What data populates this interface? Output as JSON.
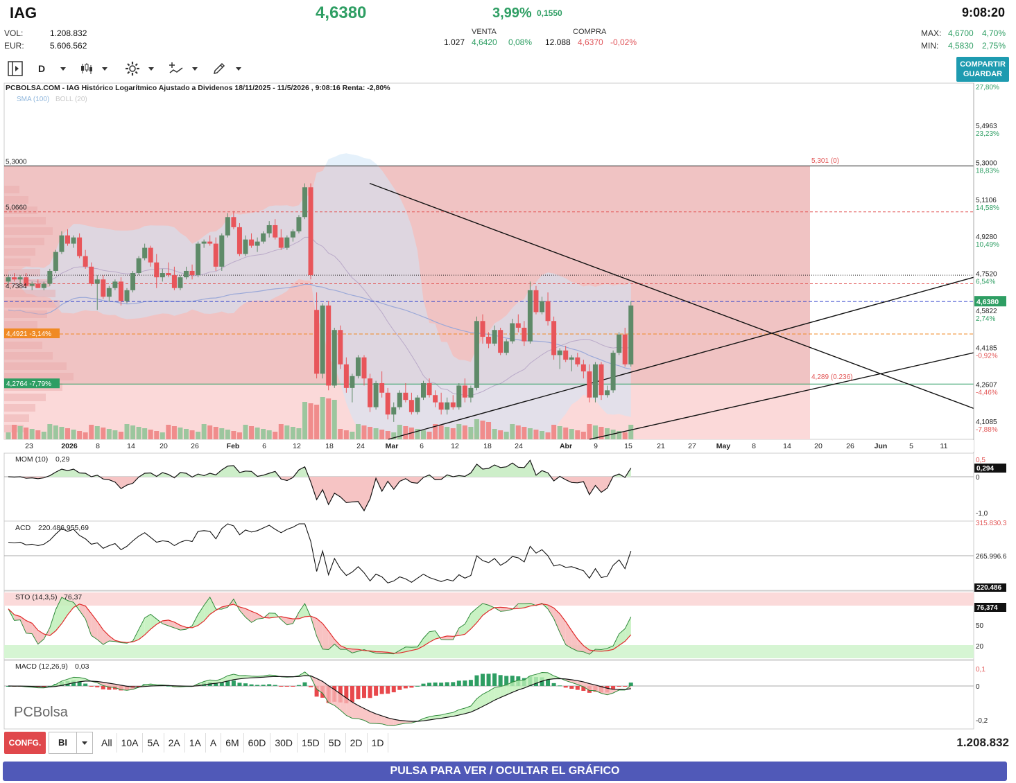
{
  "header": {
    "ticker": "IAG",
    "price": "4,6380",
    "change_pct": "3,99%",
    "change_abs": "0,1550",
    "time": "9:08:20",
    "vol_label": "VOL:",
    "vol_value": "1.208.832",
    "eur_label": "EUR:",
    "eur_value": "5.606.562",
    "venta_label": "VENTA",
    "venta_qty": "1.027",
    "venta_price": "4,6420",
    "venta_pct": "0,08%",
    "compra_label": "COMPRA",
    "compra_qty": "12.088",
    "compra_price": "4,6370",
    "compra_pct": "-0,02%",
    "max_label": "MAX:",
    "max_value": "4,6700",
    "max_pct": "4,70%",
    "min_label": "MIN:",
    "min_value": "4,5830",
    "min_pct": "2,75%"
  },
  "toolbar": {
    "period": "D",
    "share_line1": "COMPARTIR",
    "share_line2": "GUARDAR",
    "icons": [
      "panel-toggle-icon",
      "candlestick-icon",
      "gear-icon",
      "indicator-icon",
      "pencil-icon"
    ]
  },
  "chart_data": {
    "type": "candlestick",
    "title": "PCBOLSA.COM - IAG Histórico Logarítmico Ajustado a Dividenos 18/11/2025 - 11/5/2026 , 9:08:16 Renta: -2,80%",
    "overlays_legend": [
      "SMA (100)",
      "BOLL (20)"
    ],
    "price_axis": {
      "labels": [
        {
          "price": "5,4963",
          "pct": "23,23%"
        },
        {
          "price": "5,3000",
          "pct": "18,83%"
        },
        {
          "price": "5,1106",
          "pct": "14,58%"
        },
        {
          "price": "4,9280",
          "pct": "10,49%"
        },
        {
          "price": "4,7520",
          "pct": "6,54%"
        },
        {
          "price": "4,5822",
          "pct": "2,74%"
        },
        {
          "price": "4,4185",
          "pct": "-0,92%"
        },
        {
          "price": "4,2607",
          "pct": "-4,46%"
        },
        {
          "price": "4,1085",
          "pct": "-7,88%"
        }
      ],
      "top_pct": "27,80%",
      "current": "4,6380",
      "ylim": [
        4.05,
        5.75
      ],
      "scale": "log"
    },
    "left_levels": [
      {
        "label": "5,3000",
        "price": 5.3
      },
      {
        "label": "5,0660",
        "price": 5.066
      },
      {
        "label": "4,7384",
        "price": 4.7384
      },
      {
        "label": "4,4921  -3,14%",
        "price": 4.4921
      },
      {
        "label": "4,2764  -7,79%",
        "price": 4.2764
      }
    ],
    "fib_labels": [
      {
        "label": "5,301 (0)",
        "price": 5.301
      },
      {
        "label": "4,289 (0.236)",
        "price": 4.289
      }
    ],
    "x_ticks": [
      "23",
      "2026",
      "8",
      "14",
      "20",
      "26",
      "Feb",
      "6",
      "12",
      "18",
      "24",
      "Mar",
      "6",
      "12",
      "18",
      "24",
      "Abr",
      "9",
      "15",
      "21",
      "27",
      "May",
      "8",
      "14",
      "20",
      "26",
      "Jun",
      "5",
      "11"
    ],
    "candles": [
      [
        4.73,
        4.76,
        4.72,
        4.75
      ],
      [
        4.75,
        4.77,
        4.73,
        4.74
      ],
      [
        4.74,
        4.76,
        4.72,
        4.75
      ],
      [
        4.75,
        4.77,
        4.7,
        4.71
      ],
      [
        4.71,
        4.73,
        4.69,
        4.72
      ],
      [
        4.72,
        4.74,
        4.7,
        4.7
      ],
      [
        4.7,
        4.73,
        4.69,
        4.72
      ],
      [
        4.72,
        4.79,
        4.71,
        4.78
      ],
      [
        4.78,
        4.88,
        4.77,
        4.87
      ],
      [
        4.87,
        4.97,
        4.86,
        4.95
      ],
      [
        4.95,
        4.98,
        4.9,
        4.91
      ],
      [
        4.91,
        4.95,
        4.89,
        4.94
      ],
      [
        4.94,
        4.96,
        4.84,
        4.85
      ],
      [
        4.85,
        4.88,
        4.79,
        4.8
      ],
      [
        4.8,
        4.82,
        4.71,
        4.72
      ],
      [
        4.72,
        4.76,
        4.6,
        4.74
      ],
      [
        4.74,
        4.76,
        4.65,
        4.66
      ],
      [
        4.66,
        4.71,
        4.64,
        4.7
      ],
      [
        4.7,
        4.74,
        4.69,
        4.73
      ],
      [
        4.73,
        4.75,
        4.62,
        4.64
      ],
      [
        4.64,
        4.7,
        4.63,
        4.69
      ],
      [
        4.69,
        4.78,
        4.68,
        4.77
      ],
      [
        4.77,
        4.85,
        4.76,
        4.84
      ],
      [
        4.84,
        4.91,
        4.83,
        4.89
      ],
      [
        4.89,
        4.9,
        4.8,
        4.82
      ],
      [
        4.82,
        4.86,
        4.7,
        4.75
      ],
      [
        4.75,
        4.79,
        4.73,
        4.77
      ],
      [
        4.77,
        4.82,
        4.75,
        4.76
      ],
      [
        4.76,
        4.8,
        4.69,
        4.7
      ],
      [
        4.7,
        4.76,
        4.69,
        4.75
      ],
      [
        4.75,
        4.8,
        4.74,
        4.78
      ],
      [
        4.78,
        4.81,
        4.74,
        4.76
      ],
      [
        4.76,
        4.92,
        4.75,
        4.91
      ],
      [
        4.91,
        4.93,
        4.89,
        4.92
      ],
      [
        4.92,
        4.95,
        4.9,
        4.91
      ],
      [
        4.91,
        4.94,
        4.78,
        4.8
      ],
      [
        4.8,
        4.96,
        4.78,
        4.95
      ],
      [
        4.95,
        5.06,
        4.94,
        5.04
      ],
      [
        5.04,
        5.07,
        4.98,
        4.99
      ],
      [
        4.99,
        5.01,
        4.85,
        4.86
      ],
      [
        4.86,
        4.95,
        4.85,
        4.93
      ],
      [
        4.93,
        4.96,
        4.89,
        4.9
      ],
      [
        4.9,
        4.94,
        4.87,
        4.92
      ],
      [
        4.92,
        4.97,
        4.91,
        4.96
      ],
      [
        4.96,
        5.02,
        4.94,
        5.0
      ],
      [
        5.0,
        5.03,
        4.93,
        4.94
      ],
      [
        4.94,
        4.98,
        4.88,
        4.89
      ],
      [
        4.89,
        4.95,
        4.88,
        4.94
      ],
      [
        4.94,
        4.98,
        4.92,
        4.97
      ],
      [
        4.97,
        5.05,
        4.96,
        5.04
      ],
      [
        5.04,
        5.21,
        5.03,
        5.19
      ],
      [
        5.19,
        5.21,
        4.74,
        4.76
      ],
      [
        4.6,
        4.68,
        4.3,
        4.32
      ],
      [
        4.32,
        4.63,
        4.3,
        4.62
      ],
      [
        4.62,
        4.64,
        4.25,
        4.27
      ],
      [
        4.27,
        4.52,
        4.26,
        4.51
      ],
      [
        4.51,
        4.53,
        4.34,
        4.36
      ],
      [
        4.36,
        4.39,
        4.24,
        4.26
      ],
      [
        4.26,
        4.32,
        4.2,
        4.31
      ],
      [
        4.31,
        4.4,
        4.3,
        4.39
      ],
      [
        4.39,
        4.4,
        4.27,
        4.3
      ],
      [
        4.3,
        4.32,
        4.16,
        4.18
      ],
      [
        4.18,
        4.29,
        4.17,
        4.28
      ],
      [
        4.28,
        4.33,
        4.22,
        4.24
      ],
      [
        4.24,
        4.26,
        4.13,
        4.15
      ],
      [
        4.15,
        4.2,
        4.12,
        4.18
      ],
      [
        4.18,
        4.25,
        4.17,
        4.24
      ],
      [
        4.24,
        4.28,
        4.2,
        4.21
      ],
      [
        4.21,
        4.24,
        4.15,
        4.16
      ],
      [
        4.16,
        4.23,
        4.15,
        4.22
      ],
      [
        4.22,
        4.29,
        4.21,
        4.28
      ],
      [
        4.28,
        4.3,
        4.22,
        4.23
      ],
      [
        4.23,
        4.25,
        4.18,
        4.2
      ],
      [
        4.2,
        4.24,
        4.15,
        4.17
      ],
      [
        4.17,
        4.22,
        4.15,
        4.2
      ],
      [
        4.2,
        4.23,
        4.17,
        4.18
      ],
      [
        4.18,
        4.28,
        4.17,
        4.27
      ],
      [
        4.27,
        4.3,
        4.2,
        4.22
      ],
      [
        4.22,
        4.27,
        4.2,
        4.26
      ],
      [
        4.26,
        4.57,
        4.25,
        4.55
      ],
      [
        4.55,
        4.58,
        4.45,
        4.48
      ],
      [
        4.48,
        4.5,
        4.43,
        4.45
      ],
      [
        4.45,
        4.53,
        4.44,
        4.51
      ],
      [
        4.51,
        4.52,
        4.4,
        4.41
      ],
      [
        4.41,
        4.47,
        4.4,
        4.46
      ],
      [
        4.46,
        4.56,
        4.45,
        4.54
      ],
      [
        4.54,
        4.58,
        4.5,
        4.52
      ],
      [
        4.52,
        4.55,
        4.44,
        4.46
      ],
      [
        4.46,
        4.73,
        4.45,
        4.69
      ],
      [
        4.69,
        4.71,
        4.58,
        4.59
      ],
      [
        4.59,
        4.66,
        4.58,
        4.64
      ],
      [
        4.64,
        4.68,
        4.53,
        4.55
      ],
      [
        4.55,
        4.57,
        4.38,
        4.4
      ],
      [
        4.4,
        4.43,
        4.34,
        4.42
      ],
      [
        4.42,
        4.44,
        4.37,
        4.38
      ],
      [
        4.38,
        4.4,
        4.33,
        4.39
      ],
      [
        4.39,
        4.41,
        4.35,
        4.36
      ],
      [
        4.36,
        4.38,
        4.3,
        4.33
      ],
      [
        4.33,
        4.36,
        4.2,
        4.22
      ],
      [
        4.22,
        4.37,
        4.2,
        4.36
      ],
      [
        4.36,
        4.37,
        4.21,
        4.23
      ],
      [
        4.23,
        4.27,
        4.22,
        4.25
      ],
      [
        4.25,
        4.42,
        4.24,
        4.41
      ],
      [
        4.41,
        4.5,
        4.4,
        4.49
      ],
      [
        4.49,
        4.52,
        4.35,
        4.36
      ],
      [
        4.36,
        4.64,
        4.35,
        4.62
      ]
    ],
    "volume_profile": true,
    "indicators": [
      {
        "name": "MOM (10)",
        "value": "0,29",
        "axis": [
          "0,5",
          "0",
          "-1,0"
        ],
        "current": "0,294"
      },
      {
        "name": "ACD",
        "value": "220.486.955,69",
        "axis": [
          "315.830.3",
          "265.996.6"
        ],
        "current": "220.486"
      },
      {
        "name": "STO (14,3,5)",
        "value": "76,37",
        "axis": [
          "50",
          "20"
        ],
        "current": "76,374"
      },
      {
        "name": "MACD (12,26,9)",
        "value": "0,03",
        "axis": [
          "0,1",
          "0",
          "-0,2"
        ]
      }
    ],
    "watermark": "PCBolsa"
  },
  "footer": {
    "conf_label": "CONFG.",
    "bi_label": "BI",
    "ranges": [
      "All",
      "10A",
      "5A",
      "2A",
      "1A",
      "A",
      "6M",
      "60D",
      "30D",
      "15D",
      "5D",
      "2D",
      "1D"
    ],
    "volume_total": "1.208.832",
    "toggle_label": "PULSA PARA VER / OCULTAR EL GRÁFICO"
  },
  "colors": {
    "up": "#5e8a68",
    "down": "#e8555a",
    "accent": "#2e9e63",
    "panel_red": "#f3c1c1",
    "boll": "#cfe6f8"
  }
}
